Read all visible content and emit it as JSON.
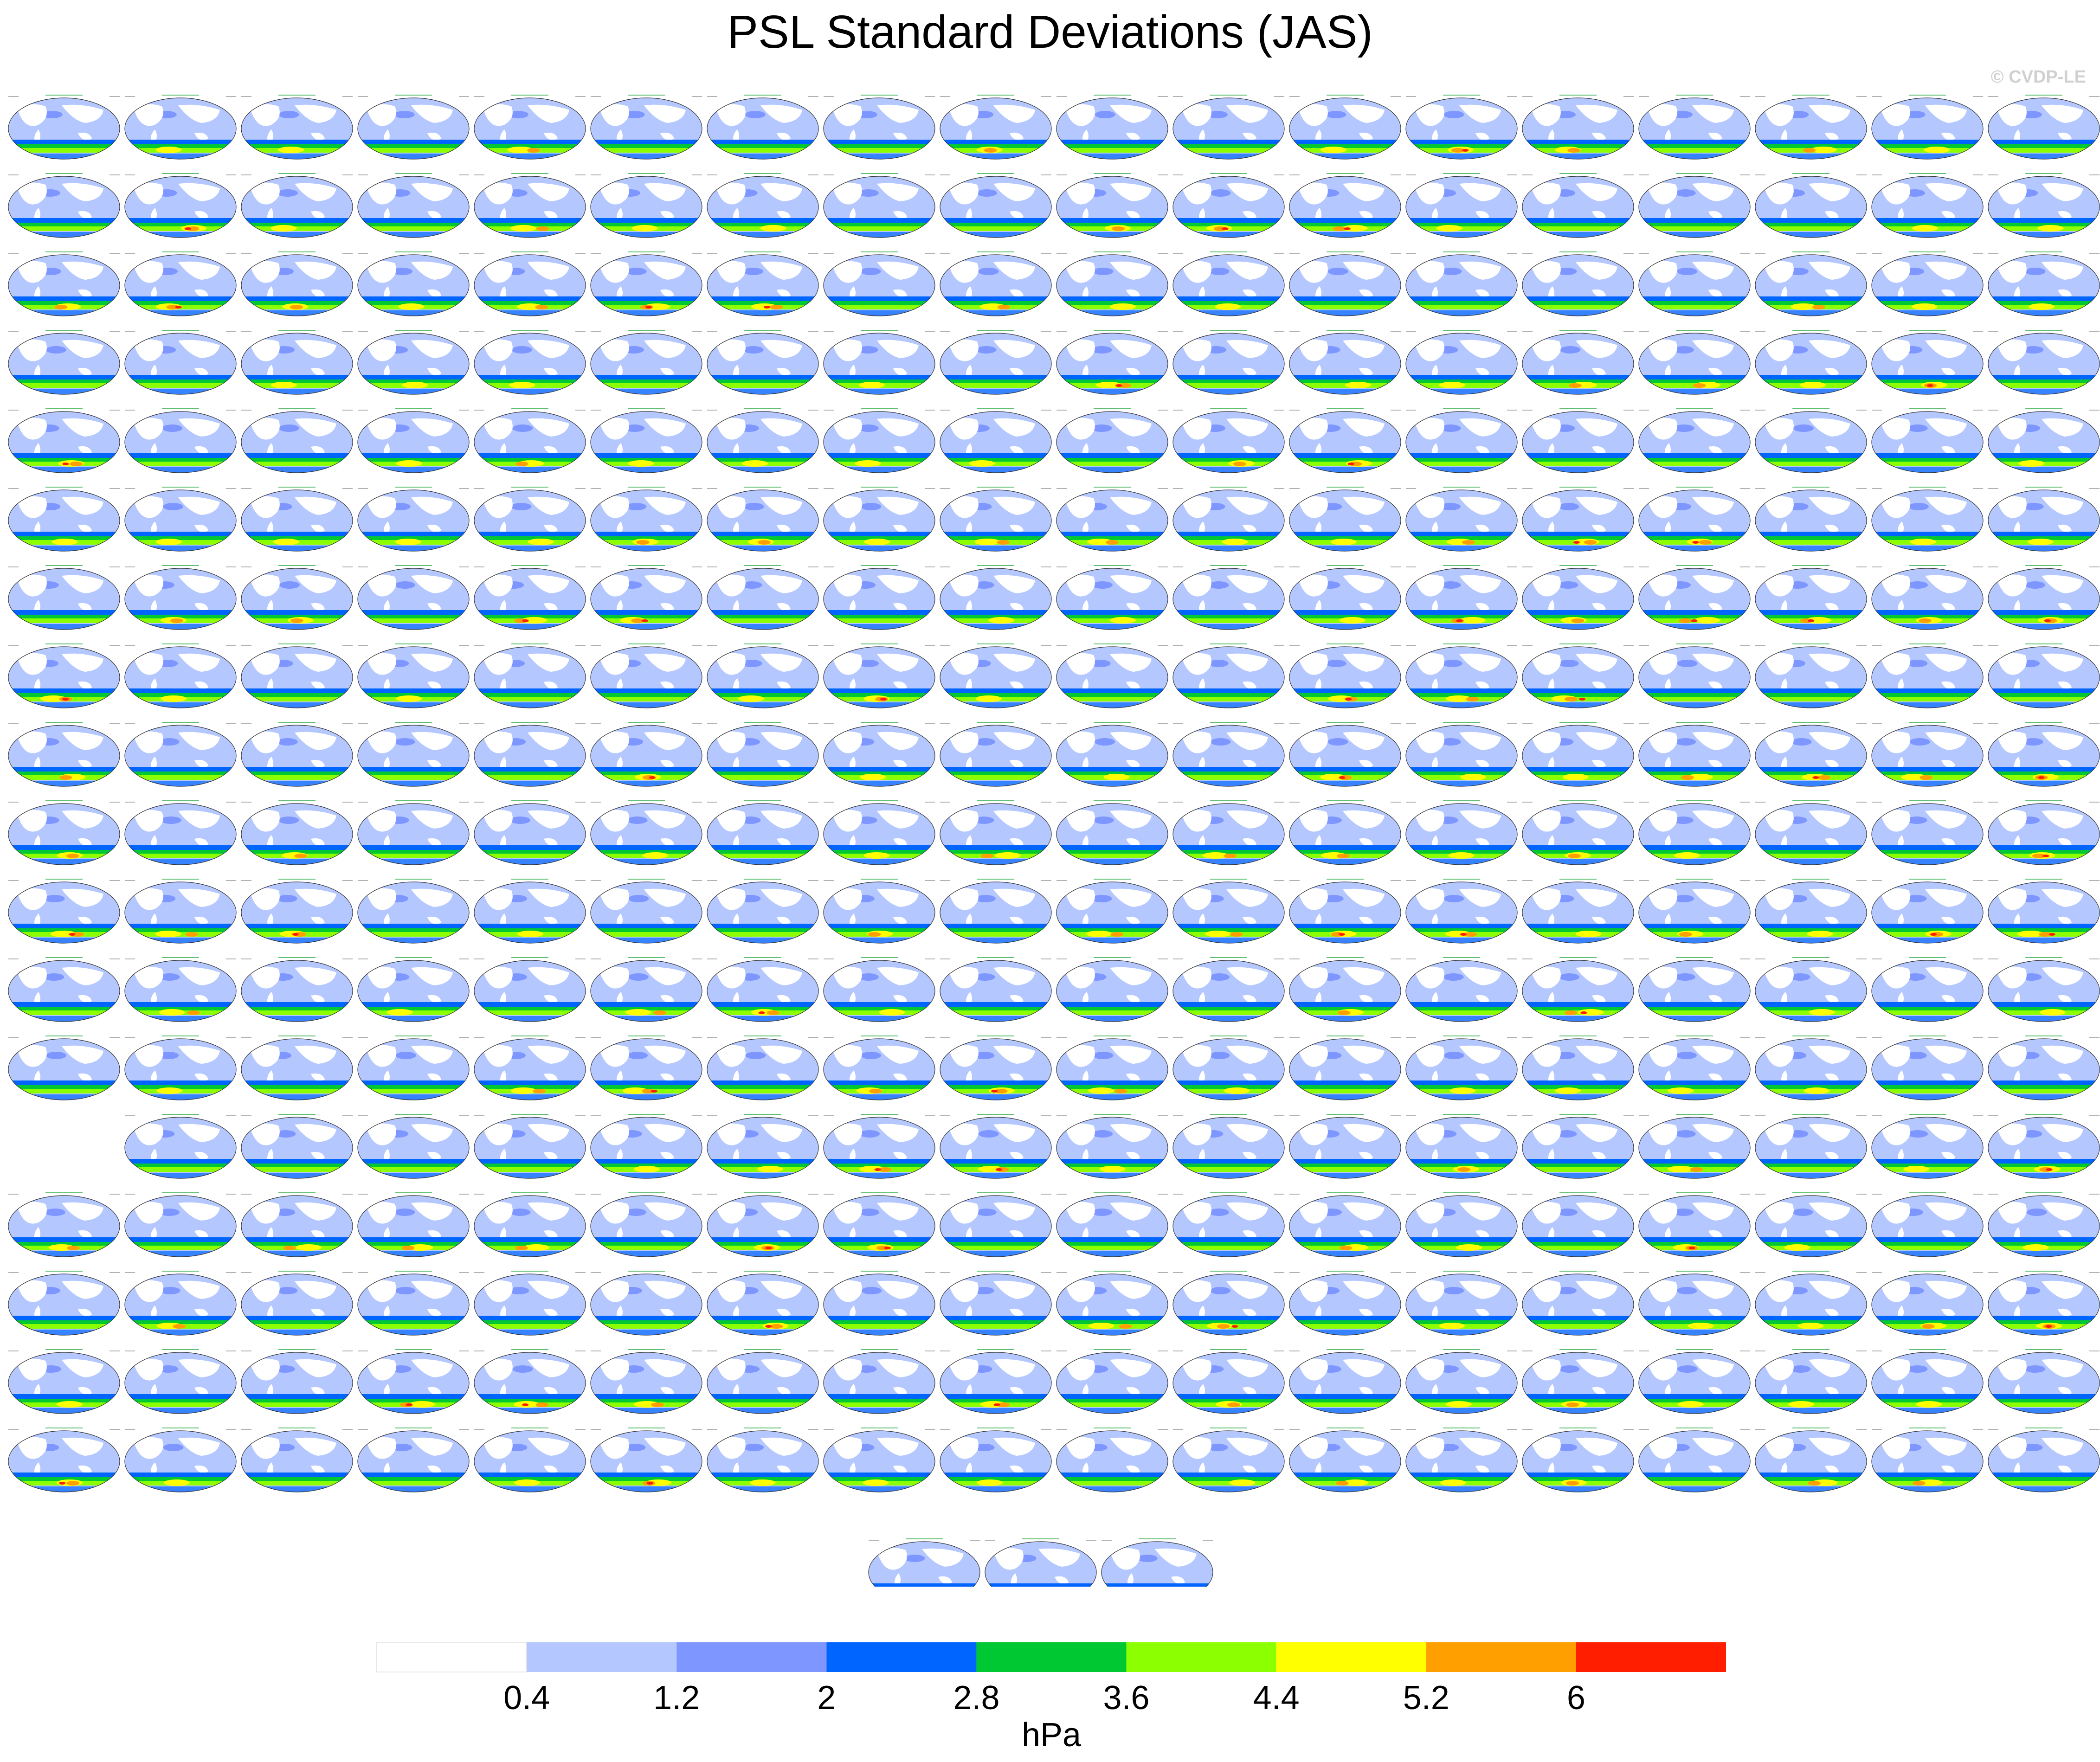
{
  "figure": {
    "title": "PSL Standard Deviations (JAS)",
    "watermark": "© CVDP-LE"
  },
  "chart_data": {
    "type": "heatmap",
    "title": "PSL Standard Deviations (JAS)",
    "map_projection": "robinson-like global ellipse",
    "panel_grid": {
      "rows": 19,
      "columns": 18,
      "row_panel_counts": [
        18,
        18,
        18,
        18,
        18,
        18,
        18,
        18,
        18,
        18,
        18,
        18,
        18,
        17,
        18,
        18,
        18,
        18,
        3
      ],
      "row_13_first_column_empty": true,
      "last_row_centered": true
    },
    "colorbar": {
      "levels": [
        0.4,
        1.2,
        2,
        2.8,
        3.6,
        4.4,
        5.2,
        6
      ],
      "tick_labels": [
        "0.4",
        "1.2",
        "2",
        "2.8",
        "3.6",
        "4.4",
        "5.2",
        "6"
      ],
      "colors": [
        "#ffffff",
        "#b4c8ff",
        "#7e96ff",
        "#0064ff",
        "#00c832",
        "#8cff00",
        "#ffff00",
        "#ffa000",
        "#ff1e00"
      ],
      "unit": "hPa",
      "orientation": "horizontal",
      "position": "bottom"
    }
  },
  "colors": {
    "ocean_light": "#b4c8ff",
    "ocean_mid": "#7e96ff",
    "ocean_deep": "#0064ff",
    "green": "#00c832",
    "lime": "#8cff00",
    "yellow": "#ffff00",
    "orange": "#ffa000",
    "red": "#ff1e00",
    "land": "#ffffff",
    "panel_title_green": "#1fa43a"
  }
}
